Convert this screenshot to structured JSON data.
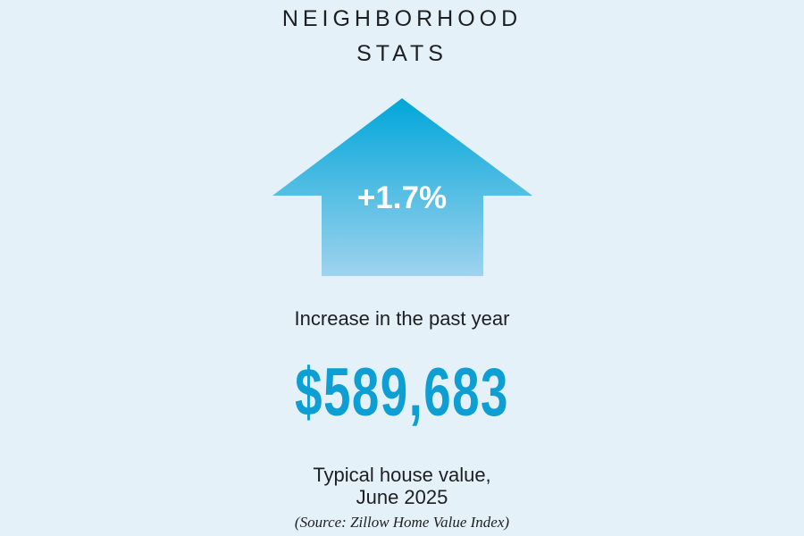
{
  "title": {
    "line1": "NEIGHBORHOOD",
    "line2": "STATS"
  },
  "arrow": {
    "label": "+1.7%",
    "direction": "up",
    "color_top": "#00a6d9",
    "color_bottom": "#9fd3ee"
  },
  "increase_caption": "Increase in the past year",
  "value": "$589,683",
  "value_color": "#0d9fd3",
  "value_caption": {
    "line1": "Typical house value,",
    "line2": "June 2025"
  },
  "source": "(Source: Zillow Home Value Index)"
}
